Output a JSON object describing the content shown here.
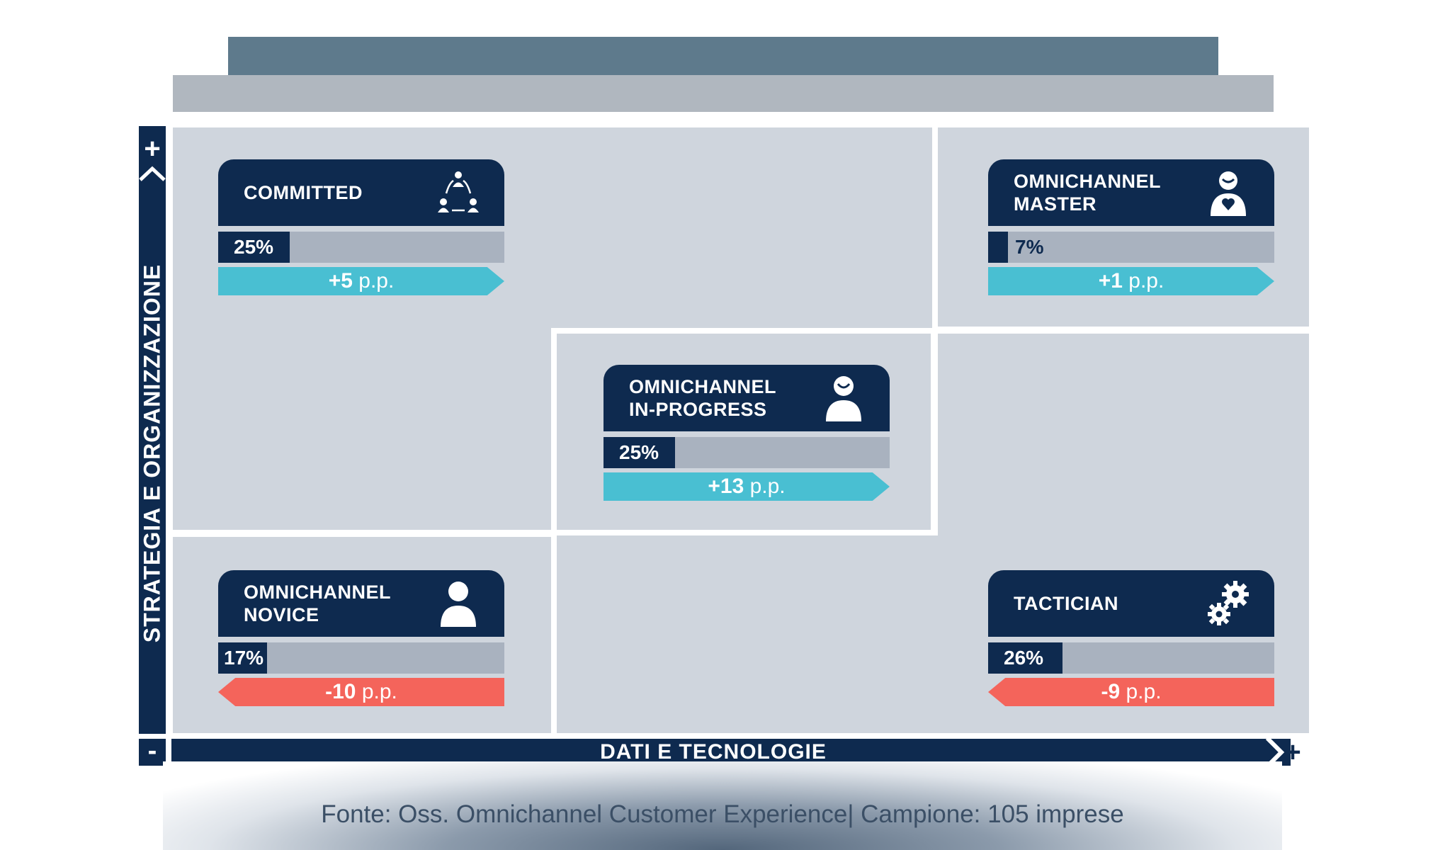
{
  "axes": {
    "y_label": "STRATEGIA E ORGANIZZAZIONE",
    "y_plus": "+",
    "x_label": "DATI E TECNOLOGIE",
    "x_minus": "-",
    "x_plus": "+"
  },
  "cards": {
    "committed": {
      "title": "COMMITTED",
      "share_label": "25%",
      "share": 25,
      "change_value": "+5",
      "change_unit": " p.p.",
      "direction": "up",
      "icon": "team-icon"
    },
    "master": {
      "title": "OMNICHANNEL\nMASTER",
      "share_label": "7%",
      "share": 7,
      "change_value": "+1",
      "change_unit": " p.p.",
      "direction": "up",
      "icon": "person-heart-icon"
    },
    "in_progress": {
      "title": "OMNICHANNEL\nIN-PROGRESS",
      "share_label": "25%",
      "share": 25,
      "change_value": "+13",
      "change_unit": " p.p.",
      "direction": "up",
      "icon": "person-smile-icon"
    },
    "novice": {
      "title": "OMNICHANNEL\nNOVICE",
      "share_label": "17%",
      "share": 17,
      "change_value": "-10",
      "change_unit": " p.p.",
      "direction": "down",
      "icon": "person-icon"
    },
    "tactician": {
      "title": "TACTICIAN",
      "share_label": "26%",
      "share": 26,
      "change_value": "-9",
      "change_unit": " p.p.",
      "direction": "down",
      "icon": "gears-icon"
    }
  },
  "footer": "Fonte: Oss. Omnichannel Customer Experience| Campione: 105 imprese",
  "colors": {
    "navy": "#0e2a4f",
    "cell": "#cfd5dd",
    "bar_track": "#a9b2bf",
    "increase": "#49bfd2",
    "decrease": "#f4645b"
  }
}
